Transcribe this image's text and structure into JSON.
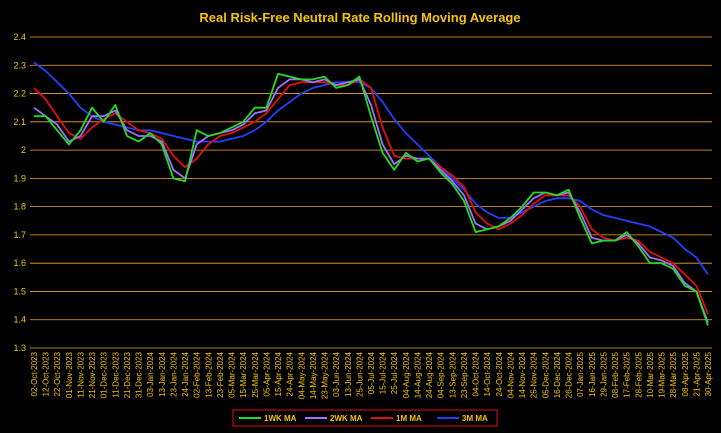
{
  "chart_data": {
    "type": "line",
    "title": "Real Risk-Free Neutral Rate Rolling Moving Average",
    "xlabel": "",
    "ylabel": "",
    "ylim": [
      1.3,
      2.4
    ],
    "yticks": [
      "1.3",
      "1.4",
      "1.5",
      "1.6",
      "1.7",
      "1.8",
      "1.9",
      "2",
      "2.1",
      "2.2",
      "2.3",
      "2.4"
    ],
    "grid": "horizontal",
    "legend_position": "bottom",
    "x": [
      "02-Oct-2023",
      "12-Oct-2023",
      "22-Oct-2023",
      "01-Nov-2023",
      "11-Nov-2023",
      "21-Nov-2023",
      "01-Dec-2023",
      "11-Dec-2023",
      "21-Dec-2023",
      "31-Dec-2023",
      "03-Jan-2024",
      "13-Jan-2024",
      "23-Jan-2024",
      "24-Jan-2024",
      "02-Feb-2024",
      "13-Feb-2024",
      "23-Feb-2024",
      "05-Mar-2024",
      "15-Mar-2024",
      "25-Mar-2024",
      "05-Apr-2024",
      "15-Apr-2024",
      "24-Apr-2024",
      "04-May-2024",
      "14-May-2024",
      "23-May-2024",
      "03-Jun-2024",
      "13-Jun-2024",
      "25-Jun-2024",
      "05-Jul-2024",
      "15-Jul-2024",
      "25-Jul-2024",
      "04-Aug-2024",
      "14-Aug-2024",
      "24-Aug-2024",
      "04-Sep-2024",
      "13-Sep-2024",
      "23-Sep-2024",
      "04-Oct-2024",
      "14-Oct-2024",
      "24-Oct-2024",
      "04-Nov-2024",
      "14-Nov-2024",
      "25-Nov-2024",
      "05-Dec-2024",
      "16-Dec-2024",
      "26-Dec-2024",
      "07-Jan-2025",
      "16-Jan-2025",
      "29-Jan-2025",
      "08-Feb-2025",
      "17-Feb-2025",
      "28-Feb-2025",
      "10-Mar-2025",
      "19-Mar-2025",
      "28-Mar-2025",
      "08-Apr-2025",
      "21-Apr-2025",
      "30-Apr-2025"
    ],
    "series": [
      {
        "name": "1WK MA",
        "color": "#22dd22",
        "values": [
          2.12,
          2.12,
          2.07,
          2.02,
          2.07,
          2.15,
          2.1,
          2.16,
          2.05,
          2.03,
          2.06,
          2.02,
          1.9,
          1.89,
          2.07,
          2.05,
          2.06,
          2.08,
          2.1,
          2.15,
          2.15,
          2.27,
          2.26,
          2.25,
          2.25,
          2.26,
          2.22,
          2.23,
          2.26,
          2.12,
          1.99,
          1.93,
          1.99,
          1.96,
          1.97,
          1.92,
          1.88,
          1.82,
          1.71,
          1.72,
          1.73,
          1.76,
          1.8,
          1.85,
          1.85,
          1.84,
          1.86,
          1.76,
          1.67,
          1.68,
          1.68,
          1.71,
          1.66,
          1.6,
          1.6,
          1.58,
          1.52,
          1.5,
          1.38
        ]
      },
      {
        "name": "2WK MA",
        "color": "#a070ff",
        "values": [
          2.15,
          2.12,
          2.09,
          2.03,
          2.05,
          2.12,
          2.12,
          2.14,
          2.07,
          2.05,
          2.05,
          2.03,
          1.93,
          1.9,
          2.02,
          2.05,
          2.06,
          2.07,
          2.09,
          2.13,
          2.14,
          2.22,
          2.25,
          2.25,
          2.24,
          2.25,
          2.23,
          2.24,
          2.25,
          2.16,
          2.02,
          1.95,
          1.98,
          1.97,
          1.97,
          1.93,
          1.89,
          1.84,
          1.74,
          1.72,
          1.73,
          1.75,
          1.79,
          1.83,
          1.85,
          1.84,
          1.85,
          1.78,
          1.69,
          1.68,
          1.68,
          1.7,
          1.67,
          1.62,
          1.61,
          1.59,
          1.53,
          1.5,
          1.39
        ]
      },
      {
        "name": "1M MA",
        "color": "#e01010",
        "values": [
          2.22,
          2.18,
          2.12,
          2.06,
          2.04,
          2.08,
          2.11,
          2.13,
          2.1,
          2.07,
          2.06,
          2.04,
          1.98,
          1.94,
          1.97,
          2.02,
          2.05,
          2.06,
          2.08,
          2.1,
          2.13,
          2.18,
          2.23,
          2.24,
          2.24,
          2.24,
          2.23,
          2.23,
          2.25,
          2.22,
          2.08,
          1.98,
          1.97,
          1.97,
          1.97,
          1.94,
          1.91,
          1.87,
          1.78,
          1.74,
          1.72,
          1.74,
          1.77,
          1.81,
          1.84,
          1.84,
          1.84,
          1.8,
          1.72,
          1.69,
          1.68,
          1.69,
          1.68,
          1.64,
          1.62,
          1.6,
          1.56,
          1.52,
          1.42
        ]
      },
      {
        "name": "3M MA",
        "color": "#2040ff",
        "values": [
          2.31,
          2.28,
          2.24,
          2.2,
          2.15,
          2.12,
          2.1,
          2.09,
          2.08,
          2.07,
          2.07,
          2.06,
          2.05,
          2.04,
          2.03,
          2.03,
          2.03,
          2.04,
          2.05,
          2.07,
          2.1,
          2.14,
          2.17,
          2.2,
          2.22,
          2.23,
          2.24,
          2.24,
          2.24,
          2.22,
          2.17,
          2.11,
          2.06,
          2.02,
          1.98,
          1.94,
          1.9,
          1.86,
          1.81,
          1.78,
          1.76,
          1.76,
          1.78,
          1.8,
          1.82,
          1.83,
          1.83,
          1.82,
          1.79,
          1.77,
          1.76,
          1.75,
          1.74,
          1.73,
          1.71,
          1.69,
          1.65,
          1.62,
          1.56
        ]
      }
    ]
  }
}
